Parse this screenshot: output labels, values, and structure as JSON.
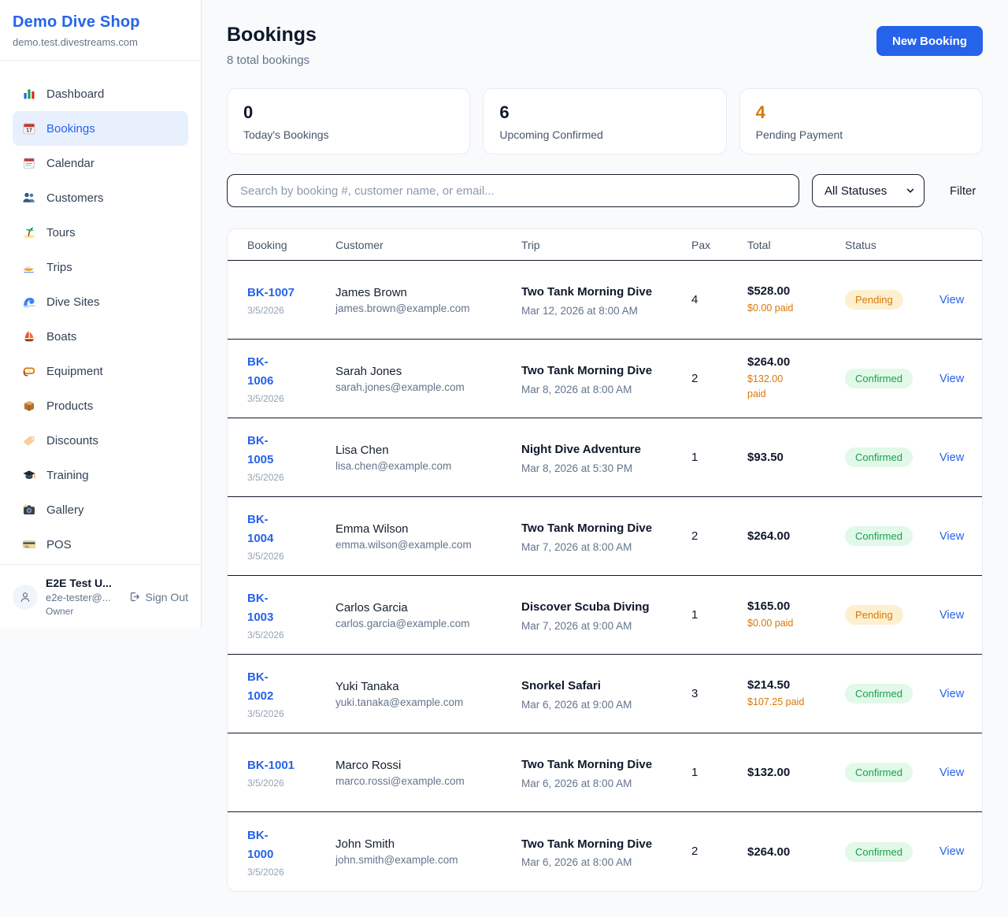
{
  "sidebar": {
    "shop_name": "Demo Dive Shop",
    "shop_domain": "demo.test.divestreams.com",
    "items": [
      {
        "label": "Dashboard",
        "icon": "dashboard",
        "active": false
      },
      {
        "label": "Bookings",
        "icon": "bookings",
        "active": true
      },
      {
        "label": "Calendar",
        "icon": "calendar",
        "active": false
      },
      {
        "label": "Customers",
        "icon": "customers",
        "active": false
      },
      {
        "label": "Tours",
        "icon": "tours",
        "active": false
      },
      {
        "label": "Trips",
        "icon": "trips",
        "active": false
      },
      {
        "label": "Dive Sites",
        "icon": "dive-sites",
        "active": false
      },
      {
        "label": "Boats",
        "icon": "boats",
        "active": false
      },
      {
        "label": "Equipment",
        "icon": "equipment",
        "active": false
      },
      {
        "label": "Products",
        "icon": "products",
        "active": false
      },
      {
        "label": "Discounts",
        "icon": "discounts",
        "active": false
      },
      {
        "label": "Training",
        "icon": "training",
        "active": false
      },
      {
        "label": "Gallery",
        "icon": "gallery",
        "active": false
      },
      {
        "label": "POS",
        "icon": "pos",
        "active": false
      }
    ],
    "user": {
      "name": "E2E Test U...",
      "email": "e2e-tester@...",
      "role": "Owner",
      "sign_out_label": "Sign Out"
    }
  },
  "header": {
    "title": "Bookings",
    "subtitle": "8 total bookings",
    "new_booking_label": "New Booking"
  },
  "stats": [
    {
      "value": "0",
      "label": "Today's Bookings",
      "accent": "#0f172a"
    },
    {
      "value": "6",
      "label": "Upcoming Confirmed",
      "accent": "#0f172a"
    },
    {
      "value": "4",
      "label": "Pending Payment",
      "accent": "#d97706"
    }
  ],
  "filters": {
    "search_placeholder": "Search by booking #, customer name, or email...",
    "status_selected": "All Statuses",
    "filter_label": "Filter"
  },
  "table": {
    "columns": [
      "Booking",
      "Customer",
      "Trip",
      "Pax",
      "Total",
      "Status"
    ],
    "view_label": "View",
    "rows": [
      {
        "id": "BK-1007",
        "id_wrap": false,
        "booked_date": "3/5/2026",
        "customer": "James Brown",
        "email": "james.brown@example.com",
        "trip": "Two Tank Morning Dive",
        "trip_datetime": "Mar 12, 2026 at 8:00 AM",
        "pax": "4",
        "total": "$528.00",
        "paid": "$0.00 paid",
        "paid_wrap": false,
        "status": "Pending",
        "status_type": "pending"
      },
      {
        "id": "BK-1006",
        "id_wrap": true,
        "booked_date": "3/5/2026",
        "customer": "Sarah Jones",
        "email": "sarah.jones@example.com",
        "trip": "Two Tank Morning Dive",
        "trip_datetime": "Mar 8, 2026 at 8:00 AM",
        "pax": "2",
        "total": "$264.00",
        "paid": "$132.00 paid",
        "paid_wrap": true,
        "status": "Confirmed",
        "status_type": "confirmed"
      },
      {
        "id": "BK-1005",
        "id_wrap": true,
        "booked_date": "3/5/2026",
        "customer": "Lisa Chen",
        "email": "lisa.chen@example.com",
        "trip": "Night Dive Adventure",
        "trip_datetime": "Mar 8, 2026 at 5:30 PM",
        "pax": "1",
        "total": "$93.50",
        "paid": null,
        "paid_wrap": false,
        "status": "Confirmed",
        "status_type": "confirmed"
      },
      {
        "id": "BK-1004",
        "id_wrap": true,
        "booked_date": "3/5/2026",
        "customer": "Emma Wilson",
        "email": "emma.wilson@example.com",
        "trip": "Two Tank Morning Dive",
        "trip_datetime": "Mar 7, 2026 at 8:00 AM",
        "pax": "2",
        "total": "$264.00",
        "paid": null,
        "paid_wrap": false,
        "status": "Confirmed",
        "status_type": "confirmed"
      },
      {
        "id": "BK-1003",
        "id_wrap": true,
        "booked_date": "3/5/2026",
        "customer": "Carlos Garcia",
        "email": "carlos.garcia@example.com",
        "trip": "Discover Scuba Diving",
        "trip_datetime": "Mar 7, 2026 at 9:00 AM",
        "pax": "1",
        "total": "$165.00",
        "paid": "$0.00 paid",
        "paid_wrap": false,
        "status": "Pending",
        "status_type": "pending"
      },
      {
        "id": "BK-1002",
        "id_wrap": true,
        "booked_date": "3/5/2026",
        "customer": "Yuki Tanaka",
        "email": "yuki.tanaka@example.com",
        "trip": "Snorkel Safari",
        "trip_datetime": "Mar 6, 2026 at 9:00 AM",
        "pax": "3",
        "total": "$214.50",
        "paid": "$107.25 paid",
        "paid_wrap": false,
        "status": "Confirmed",
        "status_type": "confirmed"
      },
      {
        "id": "BK-1001",
        "id_wrap": false,
        "booked_date": "3/5/2026",
        "customer": "Marco Rossi",
        "email": "marco.rossi@example.com",
        "trip": "Two Tank Morning Dive",
        "trip_datetime": "Mar 6, 2026 at 8:00 AM",
        "pax": "1",
        "total": "$132.00",
        "paid": null,
        "paid_wrap": false,
        "status": "Confirmed",
        "status_type": "confirmed"
      },
      {
        "id": "BK-1000",
        "id_wrap": true,
        "booked_date": "3/5/2026",
        "customer": "John Smith",
        "email": "john.smith@example.com",
        "trip": "Two Tank Morning Dive",
        "trip_datetime": "Mar 6, 2026 at 8:00 AM",
        "pax": "2",
        "total": "$264.00",
        "paid": null,
        "paid_wrap": false,
        "status": "Confirmed",
        "status_type": "confirmed"
      }
    ]
  },
  "colors": {
    "accent_blue": "#2563eb",
    "pending_text": "#d97706",
    "pending_bg": "#fdf0cf",
    "confirmed_text": "#16a34a",
    "confirmed_bg": "#e2f8e9",
    "paid_orange": "#d97706",
    "page_bg": "#f8fafc"
  }
}
